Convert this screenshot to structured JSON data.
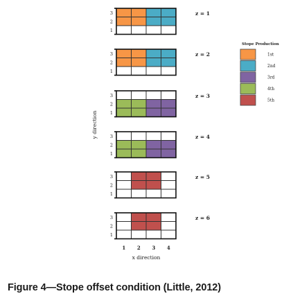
{
  "figure": {
    "caption": "Figure 4—Stope offset condition (Little, 2012)",
    "x_axis_label": "x direction",
    "y_axis_label": "y direction",
    "x_ticks": [
      "1",
      "2",
      "3",
      "4"
    ],
    "y_ticks": [
      "3",
      "2",
      "1"
    ],
    "legend": {
      "title": "Stope Production",
      "items": [
        {
          "label": "1st",
          "color": "#F79646"
        },
        {
          "label": "2nd",
          "color": "#4BACC6"
        },
        {
          "label": "3rd",
          "color": "#8064A2"
        },
        {
          "label": "4th",
          "color": "#9BBB59"
        },
        {
          "label": "5th",
          "color": "#C0504D"
        }
      ]
    },
    "levels": [
      {
        "label": "z = 1",
        "rows": [
          [
            1,
            1,
            2,
            2
          ],
          [
            1,
            1,
            2,
            2
          ],
          [
            0,
            0,
            0,
            0
          ]
        ]
      },
      {
        "label": "z = 2",
        "rows": [
          [
            1,
            1,
            2,
            2
          ],
          [
            1,
            1,
            2,
            2
          ],
          [
            0,
            0,
            0,
            0
          ]
        ]
      },
      {
        "label": "z = 3",
        "rows": [
          [
            0,
            0,
            0,
            0
          ],
          [
            4,
            4,
            3,
            3
          ],
          [
            4,
            4,
            3,
            3
          ]
        ]
      },
      {
        "label": "z = 4",
        "rows": [
          [
            0,
            0,
            0,
            0
          ],
          [
            4,
            4,
            3,
            3
          ],
          [
            4,
            4,
            3,
            3
          ]
        ]
      },
      {
        "label": "z = 5",
        "rows": [
          [
            0,
            5,
            5,
            0
          ],
          [
            0,
            5,
            5,
            0
          ],
          [
            0,
            0,
            0,
            0
          ]
        ]
      },
      {
        "label": "z = 6",
        "rows": [
          [
            0,
            5,
            5,
            0
          ],
          [
            0,
            5,
            5,
            0
          ],
          [
            0,
            0,
            0,
            0
          ]
        ]
      }
    ]
  }
}
